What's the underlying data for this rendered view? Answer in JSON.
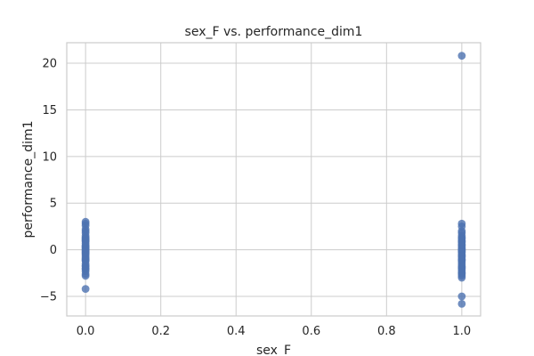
{
  "chart_data": {
    "type": "scatter",
    "title": "sex_F vs. performance_dim1",
    "xlabel": "sex_F",
    "ylabel": "performance_dim1",
    "xlim": [
      -0.05,
      1.05
    ],
    "ylim": [
      -7.1,
      22.2
    ],
    "xticks": [
      0.0,
      0.2,
      0.4,
      0.6,
      0.8,
      1.0
    ],
    "xtick_labels": [
      "0.0",
      "0.2",
      "0.4",
      "0.6",
      "0.8",
      "1.0"
    ],
    "yticks": [
      -5,
      0,
      5,
      10,
      15,
      20
    ],
    "ytick_labels": [
      "−5",
      "0",
      "5",
      "10",
      "15",
      "20"
    ],
    "grid": true,
    "color": "#4c72b0",
    "series": [
      {
        "x": [
          0,
          0,
          0,
          0,
          0,
          0,
          0,
          0,
          0,
          0,
          0,
          0,
          0,
          0,
          0,
          0,
          0,
          0,
          0,
          0,
          0,
          0,
          0,
          0,
          0,
          0,
          0,
          0,
          0,
          0,
          0,
          0,
          0,
          0,
          0,
          0,
          0,
          0
        ],
        "y": [
          3.0,
          2.8,
          2.2,
          2.0,
          1.5,
          1.3,
          1.1,
          1.0,
          0.9,
          0.7,
          0.5,
          0.3,
          0.2,
          0.0,
          -0.1,
          -0.2,
          -0.4,
          -0.5,
          -0.7,
          -0.9,
          -1.0,
          -1.2,
          -1.5,
          -1.7,
          -1.8,
          -2.0,
          -2.1,
          -2.3,
          -2.6,
          -2.8,
          -4.2,
          0.4,
          1.8,
          -0.3,
          2.6,
          1.2,
          0.1,
          -1.1
        ]
      },
      {
        "x": [
          1,
          1,
          1,
          1,
          1,
          1,
          1,
          1,
          1,
          1,
          1,
          1,
          1,
          1,
          1,
          1,
          1,
          1,
          1,
          1,
          1,
          1,
          1,
          1,
          1,
          1,
          1,
          1,
          1,
          1,
          1,
          1,
          1,
          1,
          1,
          1,
          1,
          1,
          1,
          1
        ],
        "y": [
          20.8,
          2.8,
          2.5,
          1.8,
          1.5,
          1.2,
          1.0,
          0.8,
          0.6,
          0.4,
          0.2,
          0.0,
          -0.1,
          -0.3,
          -0.5,
          -0.6,
          -0.8,
          -1.0,
          -1.2,
          -1.4,
          -1.6,
          -1.8,
          -2.0,
          -2.2,
          -2.4,
          -2.6,
          -2.8,
          -3.0,
          -5.0,
          -5.8,
          0.9,
          -0.2,
          1.3,
          -1.1,
          0.5,
          -1.9,
          2.0,
          -0.7,
          0.1,
          -2.5
        ]
      }
    ]
  }
}
